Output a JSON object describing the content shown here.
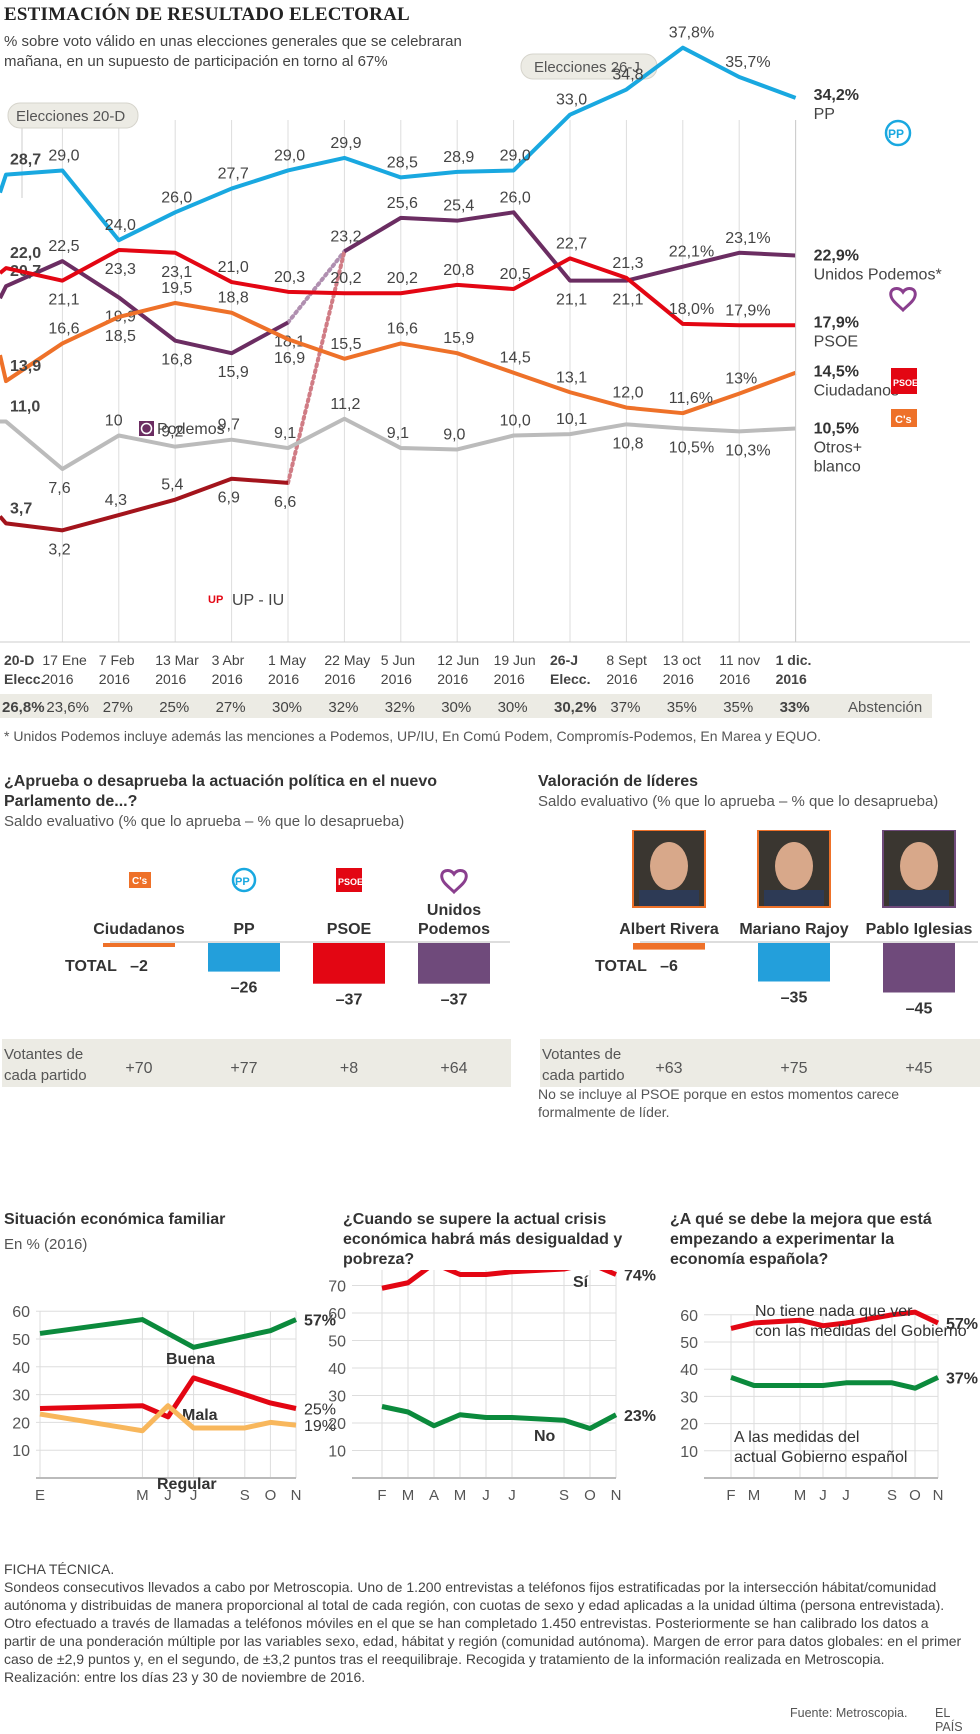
{
  "header": {
    "title": "ESTIMACIÓN DE RESULTADO ELECTORAL",
    "subtitle": "% sobre voto válido en unas elecciones generales que se celebraran mañana, en un supuesto de participación en torno al 67%"
  },
  "chart_data": [
    {
      "type": "line",
      "title": "ESTIMACIÓN DE RESULTADO ELECTORAL",
      "ylabel": "% sobre voto válido",
      "ylim": [
        0,
        40
      ],
      "grid": "vertical",
      "annotations": [
        "Elecciones 20-D",
        "Elecciones 26-J"
      ],
      "categories": [
        {
          "top": "20-D",
          "bottom": "Elecc.",
          "bold": true
        },
        {
          "top": "17 Ene",
          "bottom": "2016"
        },
        {
          "top": "7 Feb",
          "bottom": "2016"
        },
        {
          "top": "13 Mar",
          "bottom": "2016"
        },
        {
          "top": "3 Abr",
          "bottom": "2016"
        },
        {
          "top": "1 May",
          "bottom": "2016"
        },
        {
          "top": "22 May",
          "bottom": "2016"
        },
        {
          "top": "5 Jun",
          "bottom": "2016"
        },
        {
          "top": "12 Jun",
          "bottom": "2016"
        },
        {
          "top": "19 Jun",
          "bottom": "2016"
        },
        {
          "top": "26-J",
          "bottom": "Elecc.",
          "bold": true
        },
        {
          "top": "8 Sept",
          "bottom": "2016"
        },
        {
          "top": "13 oct",
          "bottom": "2016"
        },
        {
          "top": "11 nov",
          "bottom": "2016"
        },
        {
          "top": "1 dic.",
          "bottom": "2016",
          "bold": true
        }
      ],
      "series": [
        {
          "name": "PP",
          "color": "#19a8e0",
          "values": [
            28.7,
            29.0,
            24.0,
            26.0,
            27.7,
            29.0,
            29.9,
            28.5,
            28.9,
            29.0,
            33.0,
            34.8,
            37.8,
            35.7,
            34.2
          ],
          "labels": [
            "28,7",
            "29,0",
            "24,0",
            "26,0",
            "27,7",
            "29,0",
            "29,9",
            "28,5",
            "28,9",
            "29,0",
            "33,0",
            "34,8",
            "37,8%",
            "35,7%",
            ""
          ],
          "end_value": "34,2%",
          "end_name": "PP"
        },
        {
          "name": "Unidos Podemos",
          "color": "#6b2d62",
          "values": [
            null,
            null,
            null,
            null,
            null,
            null,
            23.2,
            25.6,
            25.4,
            26.0,
            21.1,
            21.1,
            22.1,
            23.1,
            22.9
          ],
          "labels": [
            "",
            "",
            "",
            "",
            "",
            "",
            "23,2",
            "25,6",
            "25,4",
            "26,0",
            "21,1",
            "21,1",
            "22,1%",
            "23,1%",
            ""
          ],
          "end_value": "22,9%",
          "end_name": "Unidos Podemos*"
        },
        {
          "name": "Podemos",
          "color": "#6b2d62",
          "values": [
            20.7,
            22.5,
            19.9,
            16.8,
            15.9,
            18.1,
            null,
            null,
            null,
            null,
            null,
            null,
            null,
            null,
            null
          ],
          "labels": [
            "20,7",
            "22,5",
            "19,9",
            "16,8",
            "15,9",
            "18,1",
            "",
            "",
            "",
            "",
            "",
            "",
            "",
            "",
            ""
          ]
        },
        {
          "name": "PSOE",
          "color": "#e30613",
          "values": [
            22.0,
            21.1,
            23.3,
            23.1,
            21.0,
            20.3,
            20.2,
            20.2,
            20.8,
            20.5,
            22.7,
            21.3,
            18.0,
            17.9,
            17.9
          ],
          "labels": [
            "22,0",
            "21,1",
            "23,3",
            "23,1",
            "21,0",
            "20,3",
            "20,2",
            "20,2",
            "20,8",
            "20,5",
            "22,7",
            "21,3",
            "18,0%",
            "17,9%",
            ""
          ],
          "end_value": "17,9%",
          "end_name": "PSOE"
        },
        {
          "name": "Ciudadanos",
          "color": "#ee7129",
          "values": [
            13.9,
            16.6,
            18.5,
            19.5,
            18.8,
            16.9,
            15.5,
            16.6,
            15.9,
            14.5,
            13.1,
            12.0,
            11.6,
            13.0,
            14.5
          ],
          "labels": [
            "13,9",
            "16,6",
            "18,5",
            "19,5",
            "18,8",
            "16,9",
            "15,5",
            "16,6",
            "15,9",
            "14,5",
            "13,1",
            "12,0",
            "11,6%",
            "13%",
            ""
          ],
          "end_value": "14,5%",
          "end_name": "Ciudadanos"
        },
        {
          "name": "Otros+ blanco",
          "color": "#bbbbbb",
          "values": [
            11.0,
            7.6,
            10.0,
            9.2,
            9.7,
            9.1,
            11.2,
            9.1,
            9.0,
            10.0,
            10.1,
            10.8,
            10.5,
            10.3,
            10.5
          ],
          "labels": [
            "11,0",
            "7,6",
            "10",
            "9,2",
            "9,7",
            "9,1",
            "11,2",
            "9,1",
            "9,0",
            "10,0",
            "10,1",
            "10,8",
            "10,5%",
            "10,3%",
            ""
          ],
          "end_value": "10,5%",
          "end_name": "Otros+ blanco"
        },
        {
          "name": "UP - IU",
          "color": "#a3141c",
          "values": [
            3.7,
            3.2,
            4.3,
            5.4,
            6.9,
            6.6,
            null,
            null,
            null,
            null,
            null,
            null,
            null,
            null,
            null
          ],
          "labels": [
            "3,7",
            "3,2",
            "4,3",
            "5,4",
            "6,9",
            "6,6",
            "",
            "",
            "",
            "",
            "",
            "",
            "",
            "",
            ""
          ]
        }
      ],
      "legend_inline": [
        "Podemos",
        "UP - IU"
      ],
      "abstention": {
        "label": "Abstención",
        "values": [
          "26,8%",
          "23,6%",
          "27%",
          "25%",
          "27%",
          "30%",
          "32%",
          "32%",
          "30%",
          "30%",
          "30,2%",
          "37%",
          "35%",
          "35%",
          "33%"
        ]
      },
      "footnote": "* Unidos Podemos incluye además las menciones a Podemos, UP/IU, En Comú Podem, Compromís-Podemos, En Marea y EQUO."
    },
    {
      "type": "bar",
      "title": "¿Aprueba o desaprueba la actuación política en el nuevo Parlamento de...?",
      "subtitle": "Saldo evaluativo (% que lo aprueba – % que lo desaprueba)",
      "categories": [
        "Ciudadanos",
        "PP",
        "PSOE",
        "Unidos Podemos"
      ],
      "colors": [
        "#ee7129",
        "#239fdb",
        "#e30613",
        "#6f4a7b"
      ],
      "values": [
        -2,
        -26,
        -37,
        -37
      ],
      "value_labels": [
        "–2",
        "–26",
        "–37",
        "–37"
      ],
      "row_label": "TOTAL",
      "voters_label": "Votantes de cada partido",
      "voters": [
        "+70",
        "+77",
        "+8",
        "+64"
      ]
    },
    {
      "type": "bar",
      "title": "Valoración de líderes",
      "subtitle": "Saldo evaluativo (% que lo aprueba – % que lo desaprueba)",
      "categories": [
        "Albert Rivera",
        "Mariano Rajoy",
        "Pablo Iglesias"
      ],
      "colors": [
        "#ee7129",
        "#239fdb",
        "#6f4a7b"
      ],
      "values": [
        -6,
        -35,
        -45
      ],
      "value_labels": [
        "–6",
        "–35",
        "–45"
      ],
      "row_label": "TOTAL",
      "voters_label": "Votantes de cada partido",
      "voters": [
        "+63",
        "+75",
        "+45"
      ],
      "note": "No se incluye al PSOE porque en estos momentos carece formalmente de líder."
    },
    {
      "type": "line",
      "title": "Situación económica familiar",
      "subtitle": "En % (2016)",
      "ylim": [
        0,
        60
      ],
      "yticks": [
        10,
        20,
        30,
        40,
        50,
        60
      ],
      "x": [
        "E",
        "M",
        "J",
        "J",
        "S",
        "O",
        "N"
      ],
      "x_pos": [
        1,
        5,
        6,
        7,
        9,
        10,
        11
      ],
      "series": [
        {
          "name": "Buena",
          "color": "#0b8a3c",
          "values": [
            52,
            57,
            null,
            47,
            null,
            53,
            57
          ],
          "end_label": "57%"
        },
        {
          "name": "Mala",
          "color": "#e30613",
          "values": [
            25,
            26,
            22,
            36,
            null,
            27,
            25
          ],
          "end_label": "25%"
        },
        {
          "name": "Regular",
          "color": "#f8b75c",
          "values": [
            23,
            17,
            26,
            18,
            18,
            20,
            19
          ],
          "end_label": "19%"
        }
      ]
    },
    {
      "type": "line",
      "title": "¿Cuando se supere la actual crisis económica habrá más desigualdad y pobreza?",
      "ylim": [
        0,
        80
      ],
      "yticks": [
        10,
        20,
        30,
        40,
        50,
        60,
        70,
        80
      ],
      "x": [
        "F",
        "M",
        "A",
        "M",
        "J",
        "J",
        "S",
        "O",
        "N"
      ],
      "x_pos": [
        2,
        3,
        4,
        5,
        6,
        7,
        9,
        10,
        11
      ],
      "series": [
        {
          "name": "Sí",
          "color": "#e30613",
          "values": [
            69,
            71,
            78,
            74,
            74,
            75,
            76,
            78,
            74
          ],
          "end_label": "74%"
        },
        {
          "name": "No",
          "color": "#0b8a3c",
          "values": [
            26,
            24,
            19,
            23,
            22,
            22,
            21,
            18,
            23
          ],
          "end_label": "23%"
        }
      ]
    },
    {
      "type": "line",
      "title": "¿A qué se debe la mejora que está empezando a experimentar la economía española?",
      "ylim": [
        0,
        60
      ],
      "yticks": [
        10,
        20,
        30,
        40,
        50,
        60
      ],
      "x": [
        "F",
        "M",
        "M",
        "J",
        "J",
        "S",
        "O",
        "N"
      ],
      "x_pos": [
        2,
        3,
        5,
        6,
        7,
        9,
        10,
        11
      ],
      "series": [
        {
          "name": "No tiene nada que ver con las medidas del Gobierno",
          "color": "#e30613",
          "values": [
            55,
            57,
            58,
            56,
            57,
            60,
            61,
            57
          ],
          "end_label": "57%"
        },
        {
          "name": "A las medidas del actual Gobierno español",
          "color": "#0b8a3c",
          "values": [
            37,
            34,
            34,
            34,
            35,
            35,
            33,
            37
          ],
          "end_label": "37%"
        }
      ]
    }
  ],
  "ficha": {
    "heading": "FICHA TÉCNICA.",
    "body": "Sondeos consecutivos llevados a cabo por Metroscopia. Uno de 1.200 entrevistas a teléfonos fijos estratificadas por la intersección hábitat/comunidad autónoma y distribuidas de manera proporcional al total de cada región, con cuotas de sexo y edad aplicadas a la unidad última (persona entrevistada). Otro efectuado a través de llamadas a teléfonos móviles en el que se han completado 1.450 entrevistas. Posteriormente se han calibrado los datos a partir de una ponderación múltiple por las variables sexo, edad, hábitat y región (comunidad autónoma). Margen de error para datos globales: en el primer caso de ±2,9 puntos y, en el segundo, de ±3,2 puntos tras el reequilibraje. Recogida y tratamiento de la información realizada en Metroscopia. Realización: entre los días 23 y 30 de noviembre de 2016."
  },
  "source": {
    "label": "Fuente: Metroscopia.",
    "brand": "EL PAÍS"
  },
  "icons": {
    "pp": "PP",
    "psoe": "PSOE",
    "cs": "C's",
    "up": "UP"
  }
}
